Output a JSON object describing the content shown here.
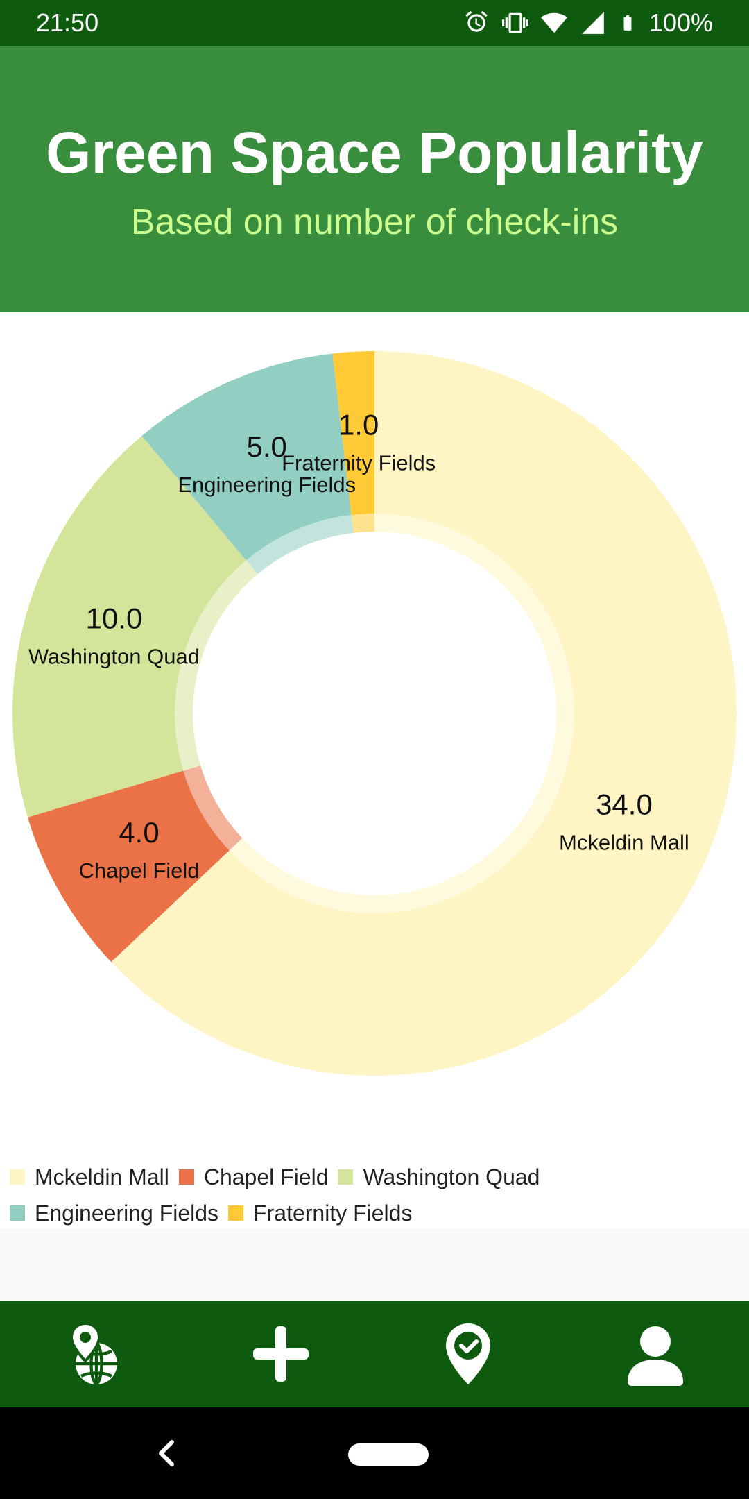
{
  "status_bar": {
    "time": "21:50",
    "battery": "100%",
    "icons": [
      "alarm-icon",
      "vibrate-icon",
      "wifi-icon",
      "signal-icon",
      "battery-icon"
    ]
  },
  "header": {
    "title": "Green Space Popularity",
    "subtitle": "Based on number of check-ins",
    "background": "#388e3c",
    "subtitle_color": "#ccff90"
  },
  "chart_data": {
    "type": "pie",
    "categories": [
      "Mckeldin Mall",
      "Chapel Field",
      "Washington Quad",
      "Engineering Fields",
      "Fraternity Fields"
    ],
    "values": [
      34.0,
      4.0,
      10.0,
      5.0,
      1.0
    ],
    "value_labels": [
      "34.0",
      "4.0",
      "10.0",
      "5.0",
      "1.0"
    ],
    "colors": [
      "#fff5c4",
      "#ea7246",
      "#d5e49b",
      "#92cec2",
      "#ffca36"
    ],
    "donut": true,
    "legend_position": "bottom-left"
  },
  "bottom_nav": {
    "items": [
      "globe-location-icon",
      "add-icon",
      "check-location-icon",
      "person-icon"
    ]
  }
}
